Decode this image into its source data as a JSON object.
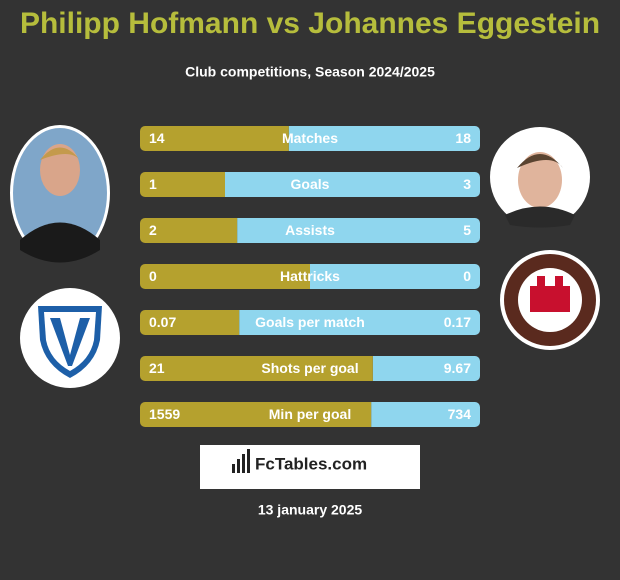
{
  "header": {
    "title": "Philipp Hofmann vs Johannes Eggestein",
    "subtitle": "Club competitions, Season 2024/2025"
  },
  "rows": [
    {
      "label": "Matches",
      "left": 14,
      "right": 18
    },
    {
      "label": "Goals",
      "left": 1,
      "right": 3
    },
    {
      "label": "Assists",
      "left": 2,
      "right": 5
    },
    {
      "label": "Hattricks",
      "left": 0,
      "right": 0
    },
    {
      "label": "Goals per match",
      "left": 0.07,
      "right": 0.17
    },
    {
      "label": "Shots per goal",
      "left": 21,
      "right": 9.67
    },
    {
      "label": "Min per goal",
      "left": 1559,
      "right": 734
    }
  ],
  "footer": {
    "brand": "FcTables.com",
    "date": "13 january 2025"
  }
}
